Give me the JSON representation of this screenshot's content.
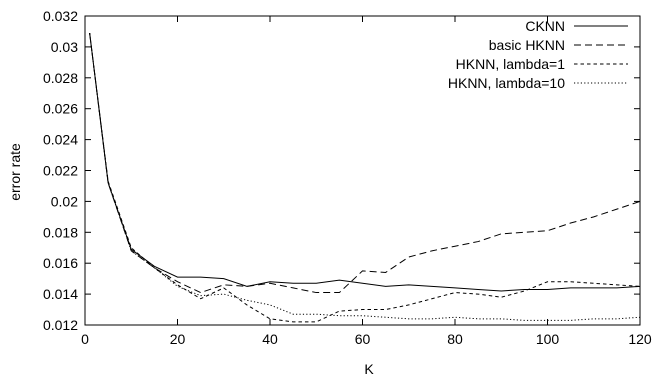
{
  "chart_data": {
    "type": "line",
    "title": "",
    "xlabel": "K",
    "ylabel": "error rate",
    "xlim": [
      0,
      120
    ],
    "ylim": [
      0.012,
      0.032
    ],
    "x_ticks": [
      0,
      20,
      40,
      60,
      80,
      100,
      120
    ],
    "y_ticks": [
      0.012,
      0.014,
      0.016,
      0.018,
      0.02,
      0.022,
      0.024,
      0.026,
      0.028,
      0.03,
      0.032
    ],
    "grid": false,
    "legend_position": "top-right",
    "series": [
      {
        "name": "CKNN",
        "dash": "solid",
        "x": [
          1,
          5,
          10,
          15,
          20,
          25,
          30,
          35,
          40,
          45,
          50,
          55,
          60,
          65,
          70,
          75,
          80,
          85,
          90,
          95,
          100,
          105,
          110,
          115,
          120
        ],
        "y": [
          0.0309,
          0.0212,
          0.0169,
          0.0158,
          0.0151,
          0.0151,
          0.015,
          0.0145,
          0.0148,
          0.0147,
          0.0147,
          0.0149,
          0.0147,
          0.0145,
          0.0146,
          0.0145,
          0.0144,
          0.0143,
          0.0142,
          0.0143,
          0.0143,
          0.0144,
          0.0144,
          0.0144,
          0.0145
        ]
      },
      {
        "name": "basic HKNN",
        "dash": "dashed",
        "x": [
          1,
          5,
          10,
          15,
          20,
          25,
          30,
          35,
          40,
          45,
          50,
          55,
          60,
          65,
          70,
          75,
          80,
          85,
          90,
          95,
          100,
          105,
          110,
          115,
          120
        ],
        "y": [
          0.0309,
          0.0212,
          0.0168,
          0.0157,
          0.0148,
          0.0141,
          0.0146,
          0.0145,
          0.0147,
          0.0144,
          0.0141,
          0.0141,
          0.0155,
          0.0154,
          0.0164,
          0.0168,
          0.0171,
          0.0174,
          0.0179,
          0.018,
          0.0181,
          0.0186,
          0.019,
          0.0195,
          0.02
        ]
      },
      {
        "name": "HKNN, lambda=1",
        "dash": "short-dash",
        "x": [
          1,
          5,
          10,
          15,
          20,
          25,
          30,
          35,
          40,
          45,
          50,
          55,
          60,
          65,
          70,
          75,
          80,
          85,
          90,
          95,
          100,
          105,
          110,
          115,
          120
        ],
        "y": [
          0.0309,
          0.0213,
          0.017,
          0.0157,
          0.0146,
          0.0137,
          0.0144,
          0.0133,
          0.0124,
          0.0122,
          0.0122,
          0.0129,
          0.013,
          0.013,
          0.0133,
          0.0137,
          0.0141,
          0.014,
          0.0138,
          0.0142,
          0.0148,
          0.0148,
          0.0147,
          0.0146,
          0.0145
        ]
      },
      {
        "name": "HKNN, lambda=10",
        "dash": "dotted",
        "x": [
          1,
          5,
          10,
          15,
          20,
          25,
          30,
          35,
          40,
          45,
          50,
          55,
          60,
          65,
          70,
          75,
          80,
          85,
          90,
          95,
          100,
          105,
          110,
          115,
          120
        ],
        "y": [
          0.0309,
          0.0212,
          0.0168,
          0.0157,
          0.0145,
          0.0139,
          0.014,
          0.0136,
          0.0133,
          0.0127,
          0.0127,
          0.0126,
          0.0126,
          0.0125,
          0.0124,
          0.0124,
          0.0125,
          0.0124,
          0.0124,
          0.0123,
          0.0123,
          0.0123,
          0.0124,
          0.0124,
          0.0125
        ]
      }
    ]
  }
}
